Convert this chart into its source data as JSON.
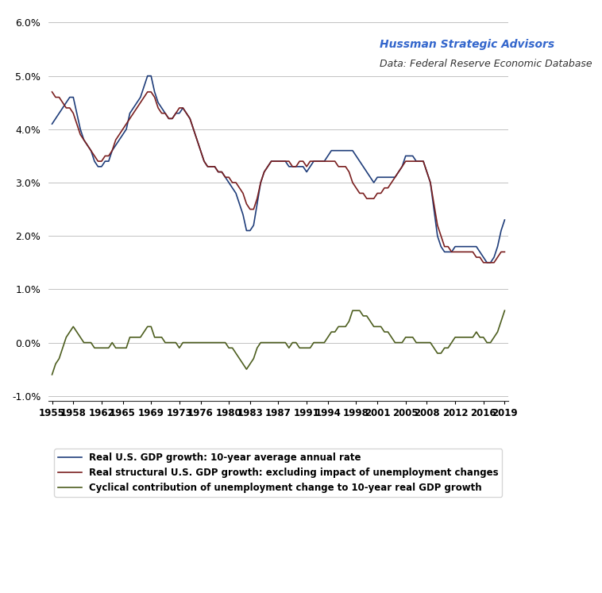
{
  "title_line1": "Hussman Strategic Advisors",
  "title_line2": "Data: Federal Reserve Economic Database",
  "title_color": "#3366cc",
  "title_fontsize": 10,
  "xlabel": "",
  "ylabel": "",
  "ylim": [
    -0.011,
    0.062
  ],
  "background_color": "#ffffff",
  "legend1": "Real U.S. GDP growth: 10-year average annual rate",
  "legend2": "Real structural U.S. GDP growth: excluding impact of unemployment changes",
  "legend3": "Cyclical contribution of unemployment change to 10-year real GDP growth",
  "line1_color": "#1f3d7a",
  "line2_color": "#7a1f1f",
  "line3_color": "#4d5e1f",
  "xticks": [
    1955,
    1958,
    1962,
    1965,
    1969,
    1973,
    1976,
    1980,
    1983,
    1987,
    1991,
    1994,
    1998,
    2001,
    2005,
    2008,
    2012,
    2016,
    2019
  ],
  "years": [
    1955,
    1955.5,
    1956,
    1956.5,
    1957,
    1957.5,
    1958,
    1958.5,
    1959,
    1959.5,
    1960,
    1960.5,
    1961,
    1961.5,
    1962,
    1962.5,
    1963,
    1963.5,
    1964,
    1964.5,
    1965,
    1965.5,
    1966,
    1966.5,
    1967,
    1967.5,
    1968,
    1968.5,
    1969,
    1969.5,
    1970,
    1970.5,
    1971,
    1971.5,
    1972,
    1972.5,
    1973,
    1973.5,
    1974,
    1974.5,
    1975,
    1975.5,
    1976,
    1976.5,
    1977,
    1977.5,
    1978,
    1978.5,
    1979,
    1979.5,
    1980,
    1980.5,
    1981,
    1981.5,
    1982,
    1982.5,
    1983,
    1983.5,
    1984,
    1984.5,
    1985,
    1985.5,
    1986,
    1986.5,
    1987,
    1987.5,
    1988,
    1988.5,
    1989,
    1989.5,
    1990,
    1990.5,
    1991,
    1991.5,
    1992,
    1992.5,
    1993,
    1993.5,
    1994,
    1994.5,
    1995,
    1995.5,
    1996,
    1996.5,
    1997,
    1997.5,
    1998,
    1998.5,
    1999,
    1999.5,
    2000,
    2000.5,
    2001,
    2001.5,
    2002,
    2002.5,
    2003,
    2003.5,
    2004,
    2004.5,
    2005,
    2005.5,
    2006,
    2006.5,
    2007,
    2007.5,
    2008,
    2008.5,
    2009,
    2009.5,
    2010,
    2010.5,
    2011,
    2011.5,
    2012,
    2012.5,
    2013,
    2013.5,
    2014,
    2014.5,
    2015,
    2015.5,
    2016,
    2016.5,
    2017,
    2017.5,
    2018,
    2018.5,
    2019
  ],
  "gdp10yr": [
    0.041,
    0.042,
    0.043,
    0.044,
    0.045,
    0.046,
    0.046,
    0.043,
    0.04,
    0.038,
    0.037,
    0.036,
    0.034,
    0.033,
    0.033,
    0.034,
    0.034,
    0.036,
    0.037,
    0.038,
    0.039,
    0.04,
    0.043,
    0.044,
    0.045,
    0.046,
    0.048,
    0.05,
    0.05,
    0.047,
    0.045,
    0.044,
    0.043,
    0.042,
    0.042,
    0.043,
    0.043,
    0.044,
    0.043,
    0.042,
    0.04,
    0.038,
    0.036,
    0.034,
    0.033,
    0.033,
    0.033,
    0.032,
    0.032,
    0.031,
    0.03,
    0.029,
    0.028,
    0.026,
    0.024,
    0.021,
    0.021,
    0.022,
    0.026,
    0.03,
    0.032,
    0.033,
    0.034,
    0.034,
    0.034,
    0.034,
    0.034,
    0.033,
    0.033,
    0.033,
    0.033,
    0.033,
    0.032,
    0.033,
    0.034,
    0.034,
    0.034,
    0.034,
    0.035,
    0.036,
    0.036,
    0.036,
    0.036,
    0.036,
    0.036,
    0.036,
    0.035,
    0.034,
    0.033,
    0.032,
    0.031,
    0.03,
    0.031,
    0.031,
    0.031,
    0.031,
    0.031,
    0.031,
    0.032,
    0.033,
    0.035,
    0.035,
    0.035,
    0.034,
    0.034,
    0.034,
    0.032,
    0.03,
    0.025,
    0.02,
    0.018,
    0.017,
    0.017,
    0.017,
    0.018,
    0.018,
    0.018,
    0.018,
    0.018,
    0.018,
    0.018,
    0.017,
    0.016,
    0.015,
    0.015,
    0.016,
    0.018,
    0.021,
    0.023
  ],
  "structural": [
    0.047,
    0.046,
    0.046,
    0.045,
    0.044,
    0.044,
    0.043,
    0.041,
    0.039,
    0.038,
    0.037,
    0.036,
    0.035,
    0.034,
    0.034,
    0.035,
    0.035,
    0.036,
    0.038,
    0.039,
    0.04,
    0.041,
    0.042,
    0.043,
    0.044,
    0.045,
    0.046,
    0.047,
    0.047,
    0.046,
    0.044,
    0.043,
    0.043,
    0.042,
    0.042,
    0.043,
    0.044,
    0.044,
    0.043,
    0.042,
    0.04,
    0.038,
    0.036,
    0.034,
    0.033,
    0.033,
    0.033,
    0.032,
    0.032,
    0.031,
    0.031,
    0.03,
    0.03,
    0.029,
    0.028,
    0.026,
    0.025,
    0.025,
    0.027,
    0.03,
    0.032,
    0.033,
    0.034,
    0.034,
    0.034,
    0.034,
    0.034,
    0.034,
    0.033,
    0.033,
    0.034,
    0.034,
    0.033,
    0.034,
    0.034,
    0.034,
    0.034,
    0.034,
    0.034,
    0.034,
    0.034,
    0.033,
    0.033,
    0.033,
    0.032,
    0.03,
    0.029,
    0.028,
    0.028,
    0.027,
    0.027,
    0.027,
    0.028,
    0.028,
    0.029,
    0.029,
    0.03,
    0.031,
    0.032,
    0.033,
    0.034,
    0.034,
    0.034,
    0.034,
    0.034,
    0.034,
    0.032,
    0.03,
    0.026,
    0.022,
    0.02,
    0.018,
    0.018,
    0.017,
    0.017,
    0.017,
    0.017,
    0.017,
    0.017,
    0.017,
    0.016,
    0.016,
    0.015,
    0.015,
    0.015,
    0.015,
    0.016,
    0.017,
    0.017
  ],
  "cyclical": [
    -0.006,
    -0.004,
    -0.003,
    -0.001,
    0.001,
    0.002,
    0.003,
    0.002,
    0.001,
    0.0,
    0.0,
    0.0,
    -0.001,
    -0.001,
    -0.001,
    -0.001,
    -0.001,
    0.0,
    -0.001,
    -0.001,
    -0.001,
    -0.001,
    0.001,
    0.001,
    0.001,
    0.001,
    0.002,
    0.003,
    0.003,
    0.001,
    0.001,
    0.001,
    0.0,
    0.0,
    0.0,
    0.0,
    -0.001,
    0.0,
    0.0,
    0.0,
    0.0,
    0.0,
    0.0,
    0.0,
    0.0,
    0.0,
    0.0,
    0.0,
    0.0,
    0.0,
    -0.001,
    -0.001,
    -0.002,
    -0.003,
    -0.004,
    -0.005,
    -0.004,
    -0.003,
    -0.001,
    0.0,
    0.0,
    0.0,
    0.0,
    0.0,
    0.0,
    0.0,
    0.0,
    -0.001,
    0.0,
    0.0,
    -0.001,
    -0.001,
    -0.001,
    -0.001,
    0.0,
    0.0,
    0.0,
    0.0,
    0.001,
    0.002,
    0.002,
    0.003,
    0.003,
    0.003,
    0.004,
    0.006,
    0.006,
    0.006,
    0.005,
    0.005,
    0.004,
    0.003,
    0.003,
    0.003,
    0.002,
    0.002,
    0.001,
    0.0,
    0.0,
    0.0,
    0.001,
    0.001,
    0.001,
    0.0,
    0.0,
    0.0,
    0.0,
    0.0,
    -0.001,
    -0.002,
    -0.002,
    -0.001,
    -0.001,
    0.0,
    0.001,
    0.001,
    0.001,
    0.001,
    0.001,
    0.001,
    0.002,
    0.001,
    0.001,
    0.0,
    0.0,
    0.001,
    0.002,
    0.004,
    0.006
  ]
}
